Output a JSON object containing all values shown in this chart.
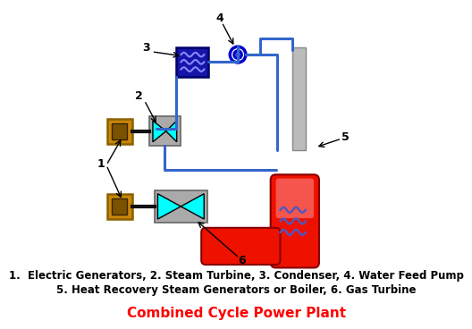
{
  "title": "Combined Cycle Power Plant",
  "title_color": "#FF0000",
  "title_fontsize": 11,
  "legend_line1": "1.  Electric Generators, 2. Steam Turbine, 3. Condenser, 4. Water Feed Pump",
  "legend_line2": "5. Heat Recovery Steam Generators or Boiler, 6. Gas Turbine",
  "legend_fontsize": 8.5,
  "bg_color": "#FFFFFF",
  "colors": {
    "generator_outer": "#C8860A",
    "generator_inner": "#7a5200",
    "generator_border": "#8B6000",
    "steam_turbine_bg": "#AAAAAA",
    "steam_turbine_blade": "#00FFFF",
    "condenser_bg": "#1515AA",
    "condenser_coil": "#6666FF",
    "pump_border": "#0000CC",
    "pump_inner": "#4444CC",
    "hrsg_red": "#EE1100",
    "hrsg_coil": "#4444AA",
    "stack_color": "#AAAAAA",
    "gas_turbine_bg": "#AAAAAA",
    "gas_turbine_blade": "#00FFFF",
    "pipe_blue": "#3366CC",
    "shaft": "#111111",
    "arrow": "#111111"
  }
}
